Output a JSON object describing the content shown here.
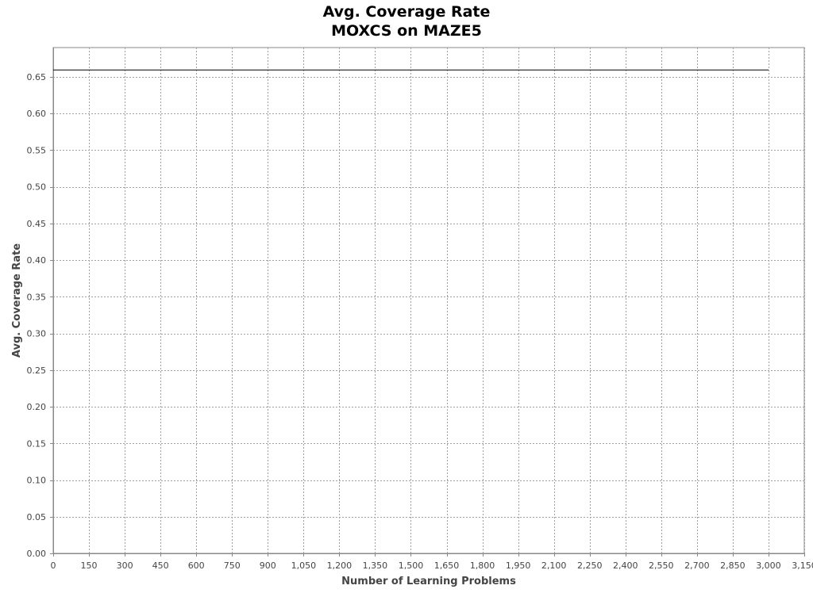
{
  "chart_data": {
    "type": "line",
    "title": "Avg. Coverage Rate",
    "subtitle": "MOXCS on MAZE5",
    "xlabel": "Number of Learning Problems",
    "ylabel": "Avg. Coverage Rate",
    "xlim": [
      0,
      3150
    ],
    "ylim": [
      0,
      0.69
    ],
    "x_ticks": [
      0,
      150,
      300,
      450,
      600,
      750,
      900,
      1050,
      1200,
      1350,
      1500,
      1650,
      1800,
      1950,
      2100,
      2250,
      2400,
      2550,
      2700,
      2850,
      3000,
      3150
    ],
    "x_tick_labels": [
      "0",
      "150",
      "300",
      "450",
      "600",
      "750",
      "900",
      "1,050",
      "1,200",
      "1,350",
      "1,500",
      "1,650",
      "1,800",
      "1,950",
      "2,100",
      "2,250",
      "2,400",
      "2,550",
      "2,700",
      "2,850",
      "3,000",
      "3,150"
    ],
    "y_ticks": [
      0,
      0.05,
      0.1,
      0.15,
      0.2,
      0.25,
      0.3,
      0.35,
      0.4,
      0.45,
      0.5,
      0.55,
      0.6,
      0.65
    ],
    "y_tick_labels": [
      "0.00",
      "0.05",
      "0.10",
      "0.15",
      "0.20",
      "0.25",
      "0.30",
      "0.35",
      "0.40",
      "0.45",
      "0.50",
      "0.55",
      "0.60",
      "0.65"
    ],
    "grid": true,
    "series": [
      {
        "color": "#000000",
        "x": [
          0,
          150,
          300,
          450,
          600,
          750,
          900,
          1050,
          1200,
          1350,
          1500,
          1650,
          1800,
          1950,
          2100,
          2250,
          2400,
          2550,
          2700,
          2850,
          3000
        ],
        "y": [
          0.66,
          0.66,
          0.66,
          0.66,
          0.66,
          0.66,
          0.66,
          0.66,
          0.66,
          0.66,
          0.66,
          0.66,
          0.66,
          0.66,
          0.66,
          0.66,
          0.66,
          0.66,
          0.66,
          0.66,
          0.66
        ]
      }
    ]
  }
}
